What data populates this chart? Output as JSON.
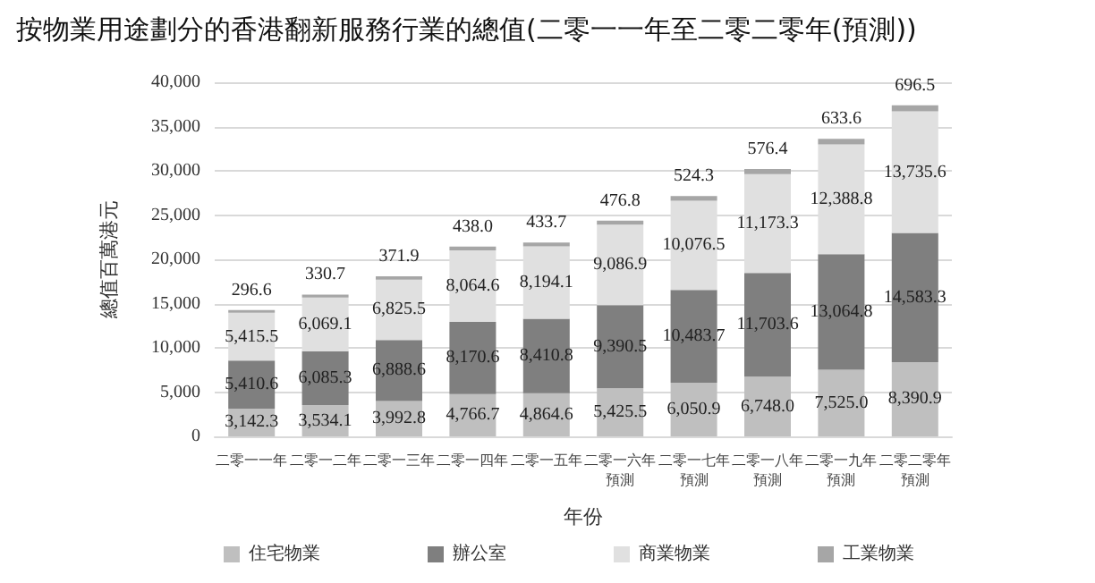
{
  "chart_data": {
    "type": "bar",
    "stacked": true,
    "title": "按物業用途劃分的香港翻新服務行業的總值(二零一一年至二零二零年(預測))",
    "xlabel": "年份",
    "ylabel": "總值百萬港元",
    "categories": [
      "二零一一年",
      "二零一二年",
      "二零一三年",
      "二零一四年",
      "二零一五年",
      "二零一六年預測",
      "二零一七年預測",
      "二零一八年預測",
      "二零一九年預測",
      "二零二零年預測"
    ],
    "series": [
      {
        "name": "住宅物業",
        "color": "#bfbfbf",
        "values": [
          3142.3,
          3534.1,
          3992.8,
          4766.7,
          4864.6,
          5425.5,
          6050.9,
          6748.0,
          7525.0,
          8390.9
        ],
        "value_labels": [
          "3,142.3",
          "3,534.1",
          "3,992.8",
          "4,766.7",
          "4,864.6",
          "5,425.5",
          "6,050.9",
          "6,748.0",
          "7,525.0",
          "8,390.9"
        ]
      },
      {
        "name": "辦公室",
        "color": "#7f7f7f",
        "values": [
          5410.6,
          6085.3,
          6888.6,
          8170.6,
          8410.8,
          9390.5,
          10483.7,
          11703.6,
          13064.8,
          14583.3
        ],
        "value_labels": [
          "5,410.6",
          "6,085.3",
          "6,888.6",
          "8,170.6",
          "8,410.8",
          "9,390.5",
          "10,483.7",
          "11,703.6",
          "13,064.8",
          "14,583.3"
        ]
      },
      {
        "name": "商業物業",
        "color": "#e0e0e0",
        "values": [
          5415.5,
          6069.1,
          6825.5,
          8064.6,
          8194.1,
          9086.9,
          10076.5,
          11173.3,
          12388.8,
          13735.6
        ],
        "value_labels": [
          "5,415.5",
          "6,069.1",
          "6,825.5",
          "8,064.6",
          "8,194.1",
          "9,086.9",
          "10,076.5",
          "11,173.3",
          "12,388.8",
          "13,735.6"
        ]
      },
      {
        "name": "工業物業",
        "color": "#a6a6a6",
        "values": [
          296.6,
          330.7,
          371.9,
          438.0,
          433.7,
          476.8,
          524.3,
          576.4,
          633.6,
          696.5
        ],
        "value_labels": [
          "296.6",
          "330.7",
          "371.9",
          "438.0",
          "433.7",
          "476.8",
          "524.3",
          "576.4",
          "633.6",
          "696.5"
        ]
      }
    ],
    "ylim": [
      0,
      40000
    ],
    "yticks": [
      {
        "value": 0,
        "label": "0"
      },
      {
        "value": 5000,
        "label": "5,000"
      },
      {
        "value": 10000,
        "label": "10,000"
      },
      {
        "value": 15000,
        "label": "15,000"
      },
      {
        "value": 20000,
        "label": "20,000"
      },
      {
        "value": 25000,
        "label": "25,000"
      },
      {
        "value": 30000,
        "label": "30,000"
      },
      {
        "value": 35000,
        "label": "35,000"
      },
      {
        "value": 40000,
        "label": "40,000"
      }
    ],
    "grid": "y",
    "legend": "bottom"
  }
}
